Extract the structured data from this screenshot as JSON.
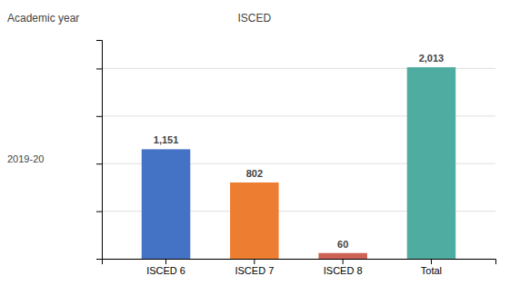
{
  "chart_data": {
    "type": "bar",
    "categories": [
      "ISCED 6",
      "ISCED 7",
      "ISCED 8",
      "Total"
    ],
    "values": [
      1151,
      802,
      60,
      2013
    ],
    "value_labels": [
      "1,151",
      "802",
      "60",
      "2,013"
    ],
    "colors": [
      "#4472C4",
      "#ED7D31",
      "#CD6155",
      "#4EADA0"
    ],
    "ylim": [
      0,
      2300
    ],
    "yticks": [
      0,
      500,
      1000,
      1500,
      2000
    ],
    "grid": true,
    "data_labels": true,
    "tick_labels": "x",
    "annotations": [
      "Academic year",
      "ISCED",
      "2019-20"
    ]
  }
}
